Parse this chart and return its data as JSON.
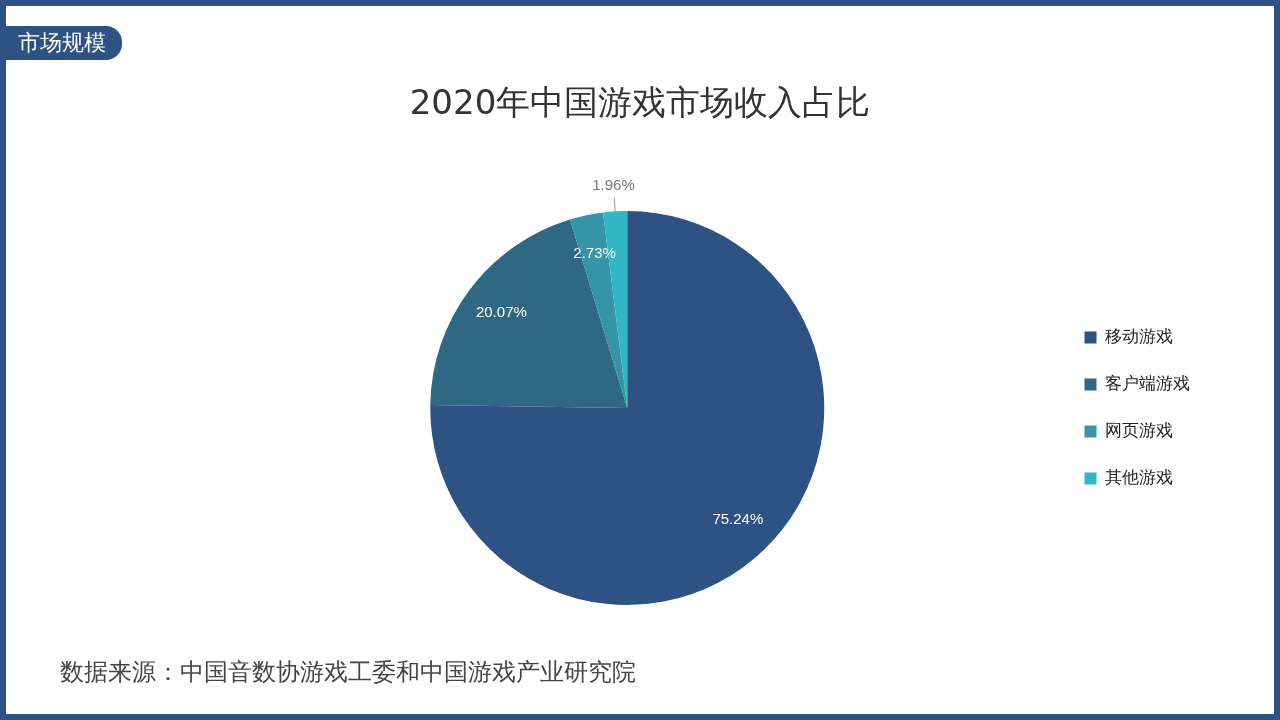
{
  "chart_data": {
    "type": "pie",
    "title": "2020年中国游戏市场收入占比",
    "categories": [
      "移动游戏",
      "客户端游戏",
      "网页游戏",
      "其他游戏"
    ],
    "values": [
      75.24,
      20.07,
      2.73,
      1.96
    ],
    "value_labels": [
      "75.24%",
      "20.07%",
      "2.73%",
      "1.96%"
    ],
    "colors": [
      "#2d5283",
      "#2e6882",
      "#3595a6",
      "#30b7c3"
    ],
    "legend": "right",
    "annotations": [
      "市场规模",
      "数据来源：中国音数协游戏工委和中国游戏产业研究院"
    ]
  }
}
